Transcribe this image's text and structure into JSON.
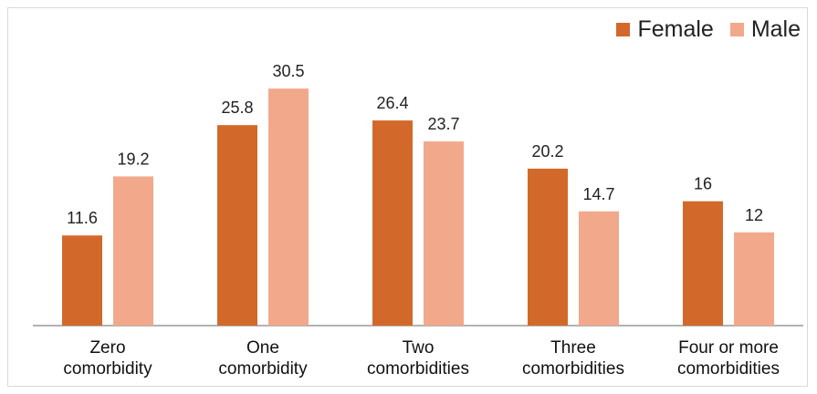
{
  "chart_data": {
    "type": "bar",
    "categories": [
      [
        "Zero",
        "comorbidity"
      ],
      [
        "One",
        "comorbidity"
      ],
      [
        "Two",
        "comorbidities"
      ],
      [
        "Three",
        "comorbidities"
      ],
      [
        "Four or more",
        "comorbidities"
      ]
    ],
    "series": [
      {
        "name": "Female",
        "color": "#D2692A",
        "values": [
          11.6,
          25.8,
          26.4,
          20.2,
          16
        ],
        "labels": [
          "11.6",
          "25.8",
          "26.4",
          "20.2",
          "16"
        ]
      },
      {
        "name": "Male",
        "color": "#F2A98B",
        "values": [
          19.2,
          30.5,
          23.7,
          14.7,
          12
        ],
        "labels": [
          "19.2",
          "30.5",
          "23.7",
          "14.7",
          "12"
        ]
      }
    ],
    "ylim": [
      0,
      35
    ],
    "grid": false,
    "legend": "top-right",
    "title": "",
    "xlabel": "",
    "ylabel": ""
  }
}
